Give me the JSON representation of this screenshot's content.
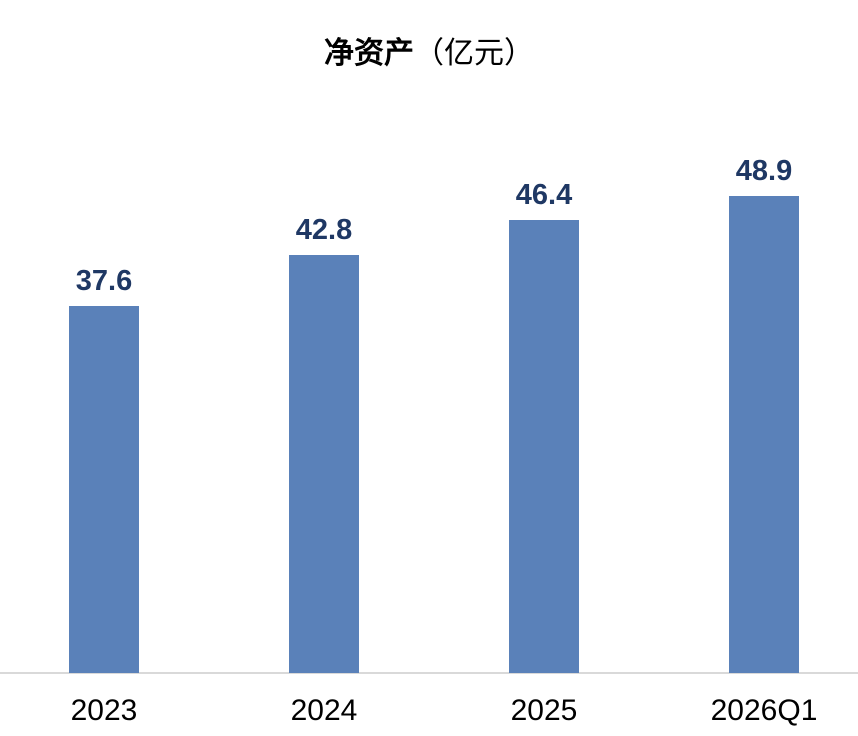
{
  "chart": {
    "title_main": "净资产",
    "title_unit": "（亿元）"
  },
  "chart_data": {
    "type": "bar",
    "title": "净资产（亿元）",
    "categories": [
      "2023",
      "2024",
      "2025",
      "2026Q1"
    ],
    "values": [
      37.6,
      42.8,
      46.4,
      48.9
    ],
    "data_labels": [
      "37.6",
      "42.8",
      "46.4",
      "48.9"
    ],
    "xlabel": "",
    "ylabel": "",
    "ylim": [
      0,
      56
    ],
    "grid": false,
    "legend": false,
    "colors": {
      "bar": "#5A81B9",
      "value_label": "#1F3864",
      "axis_line": "#D9D9D9",
      "category_label": "#000000",
      "title": "#000000",
      "background": "#FFFFFF"
    }
  }
}
